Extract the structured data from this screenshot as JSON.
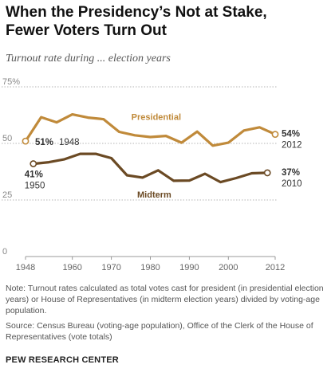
{
  "header": {
    "title_line1": "When the Presidency’s Not at Stake,",
    "title_line2": "Fewer Voters Turn Out",
    "subtitle": "Turnout rate during ... election years"
  },
  "chart_data": {
    "type": "line",
    "ylim": [
      0,
      75
    ],
    "yticks": [
      0,
      25,
      50,
      75
    ],
    "ytick_labels": [
      "0",
      "25",
      "50",
      "75%"
    ],
    "xlim": [
      1948,
      2012
    ],
    "xticks": [
      1948,
      1960,
      1970,
      1980,
      1990,
      2000,
      2012
    ],
    "grid": true,
    "series": [
      {
        "name": "Presidential",
        "color": "#c08a3a",
        "x": [
          1948,
          1952,
          1956,
          1960,
          1964,
          1968,
          1972,
          1976,
          1980,
          1984,
          1988,
          1992,
          1996,
          2000,
          2004,
          2008,
          2012
        ],
        "values": [
          51,
          61.6,
          59.3,
          62.8,
          61.4,
          60.7,
          55.1,
          53.6,
          52.8,
          53.3,
          50.3,
          55.2,
          49,
          50.3,
          55.7,
          57.1,
          54
        ]
      },
      {
        "name": "Midterm",
        "color": "#6b4a24",
        "x": [
          1950,
          1954,
          1958,
          1962,
          1966,
          1970,
          1974,
          1978,
          1982,
          1986,
          1990,
          1994,
          1998,
          2002,
          2006,
          2010
        ],
        "values": [
          41,
          41.7,
          43,
          45.4,
          45.4,
          43.5,
          35.9,
          34.9,
          38.1,
          33.5,
          33.6,
          36.6,
          32.9,
          34.7,
          36.8,
          37
        ]
      }
    ],
    "labels": {
      "series_presidential": "Presidential",
      "series_midterm": "Midterm",
      "pres_start_value": "51%",
      "pres_start_year": "1948",
      "pres_end_value": "54%",
      "pres_end_year": "2012",
      "mid_start_value": "41%",
      "mid_start_year": "1950",
      "mid_end_value": "37%",
      "mid_end_year": "2010"
    }
  },
  "footer": {
    "note": "Note: Turnout rates calculated as total votes cast for president (in presidential election years) or House of Representatives (in midterm election years) divided by voting-age population.",
    "source": "Source: Census Bureau (voting-age population), Office of the Clerk of the House of Representatives (vote totals)",
    "brand": "PEW RESEARCH CENTER"
  }
}
